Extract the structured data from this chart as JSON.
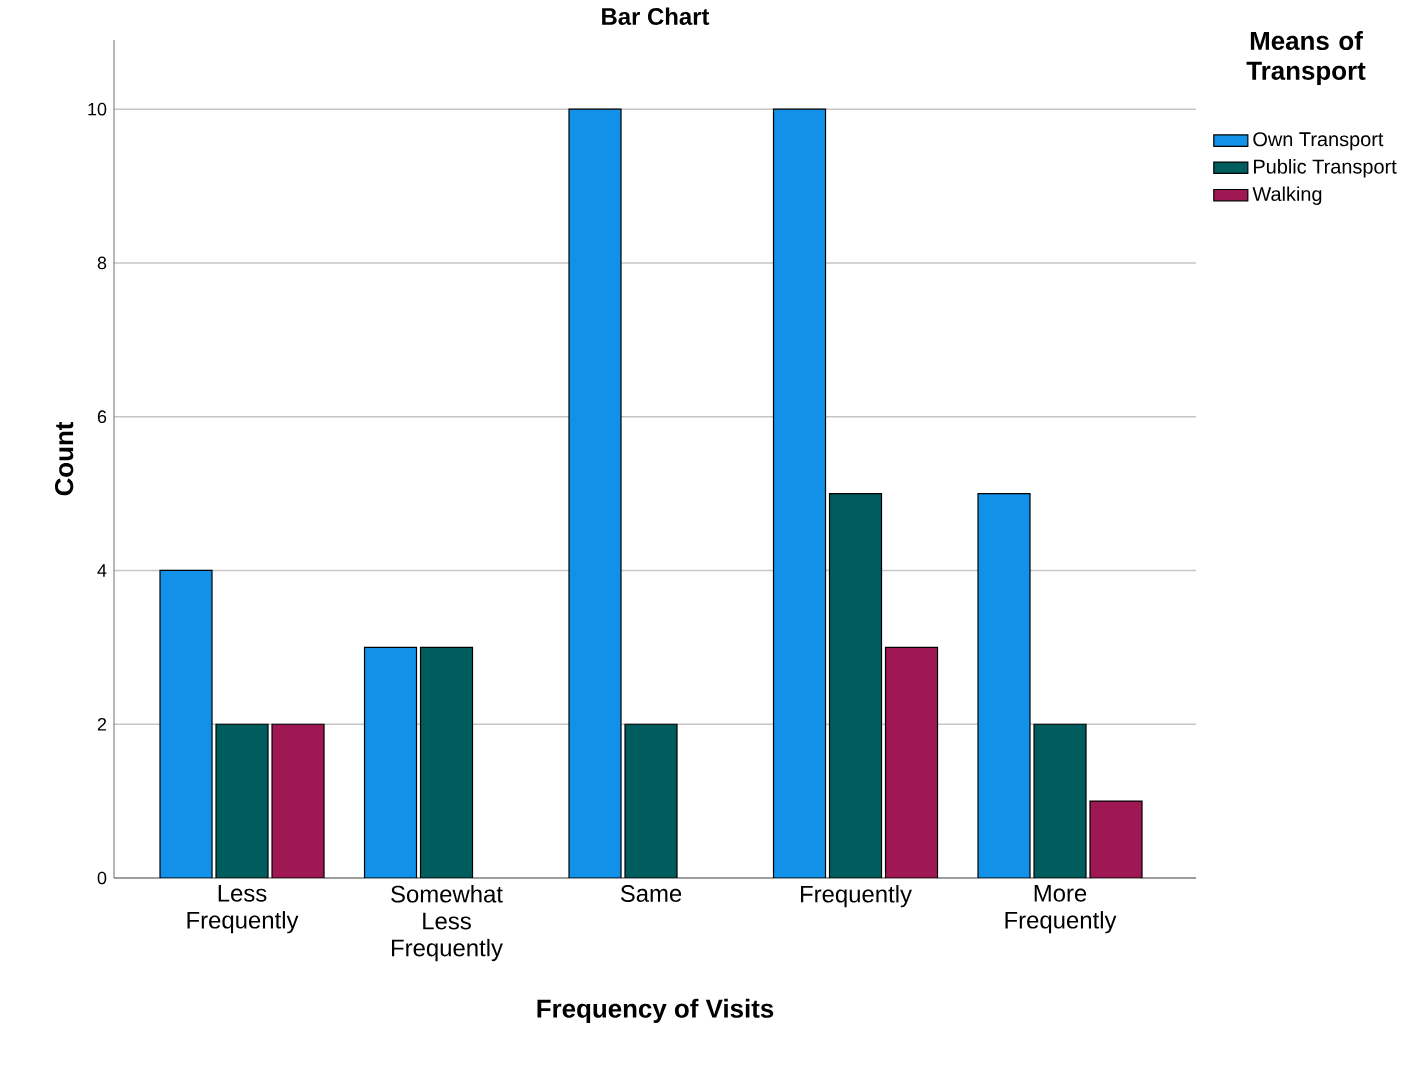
{
  "chart_data": {
    "type": "bar",
    "title": "Bar Chart",
    "xlabel": "Frequency of Visits",
    "ylabel": "Count",
    "legend_title": "Means of Transport",
    "categories": [
      "Less Frequently",
      "Somewhat Less Frequently",
      "Same",
      "Frequently",
      "More Frequently"
    ],
    "series": [
      {
        "name": "Own Transport",
        "color": "#1192e8",
        "values": [
          4,
          3,
          10,
          10,
          5
        ]
      },
      {
        "name": "Public Transport",
        "color": "#005d5d",
        "values": [
          2,
          3,
          2,
          5,
          2
        ]
      },
      {
        "name": "Walking",
        "color": "#9f1853",
        "values": [
          2,
          null,
          null,
          3,
          1
        ]
      }
    ],
    "ylim": [
      0,
      10.9
    ],
    "yticks": [
      0,
      2,
      4,
      6,
      8,
      10
    ],
    "grid": "y",
    "legend": "top right"
  }
}
